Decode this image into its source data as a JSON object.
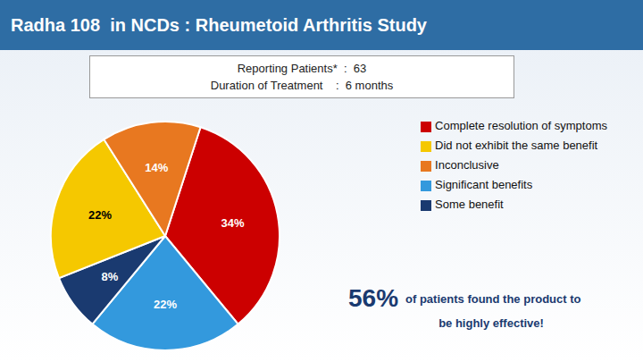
{
  "chart_data": {
    "type": "pie",
    "title": "Radha 108  in NCDs : Rheumetoid Arthritis Study",
    "categories": [
      "Complete resolution of symptoms",
      "Significant benefits",
      "Some benefit",
      "Did not exhibit the same benefit",
      "Inconclusive"
    ],
    "values": [
      34,
      22,
      8,
      22,
      14
    ],
    "value_labels": [
      "34%",
      "22%",
      "8%",
      "22%",
      "14%"
    ],
    "colors": [
      "#cc0000",
      "#3399dd",
      "#1a3a70",
      "#f5c800",
      "#e87820"
    ],
    "data_labels": true,
    "legend": "right",
    "annotations": [
      "Reporting Patients*  :  63",
      "Duration of Treatment    :  6 months",
      "56%",
      "of patients found the product to",
      "be highly effective!"
    ]
  }
}
